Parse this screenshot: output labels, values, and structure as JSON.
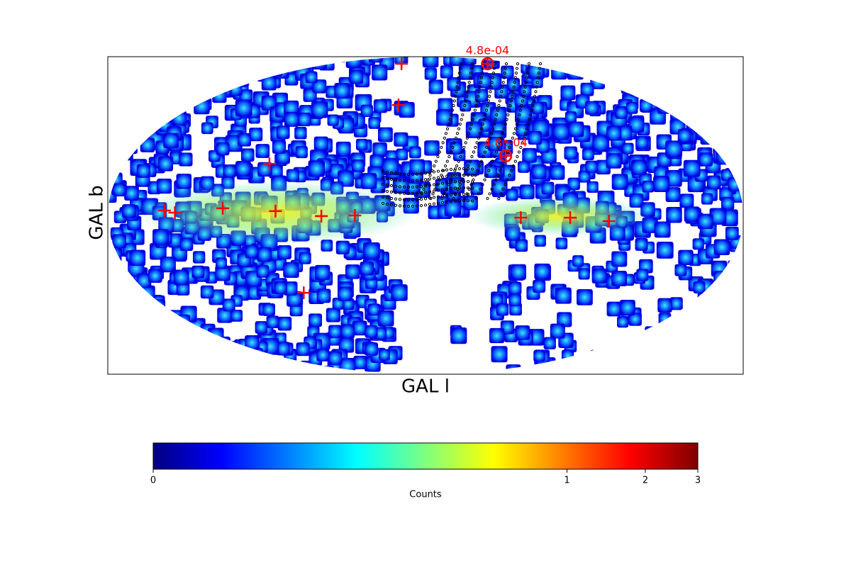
{
  "chart_data": {
    "type": "mollweide",
    "xlabel": "GAL l",
    "ylabel": "GAL b",
    "markers": {
      "color": "red",
      "l": [
        46,
        21.3,
        93.5,
        148,
        142,
        115,
        85,
        59,
        40,
        306,
        278,
        256,
        79
      ],
      "b": [
        81.4,
        53.9,
        24.0,
        2.3,
        1.3,
        3.3,
        2.0,
        -0.3,
        0,
        -1.0,
        -1.0,
        -2.6,
        -36.5
      ]
    },
    "circled": {
      "color": "red",
      "l": [
        241,
        311
      ],
      "b": [
        81.4,
        27.8
      ],
      "labels": [
        "4.8e-04",
        "4.8e-04"
      ]
    },
    "colorbar": {
      "label": "Counts",
      "clim": [
        0,
        3
      ],
      "ticks": [
        0,
        1,
        2,
        3
      ],
      "norm": "power",
      "gamma": 0.25,
      "colormap": "jet"
    }
  }
}
